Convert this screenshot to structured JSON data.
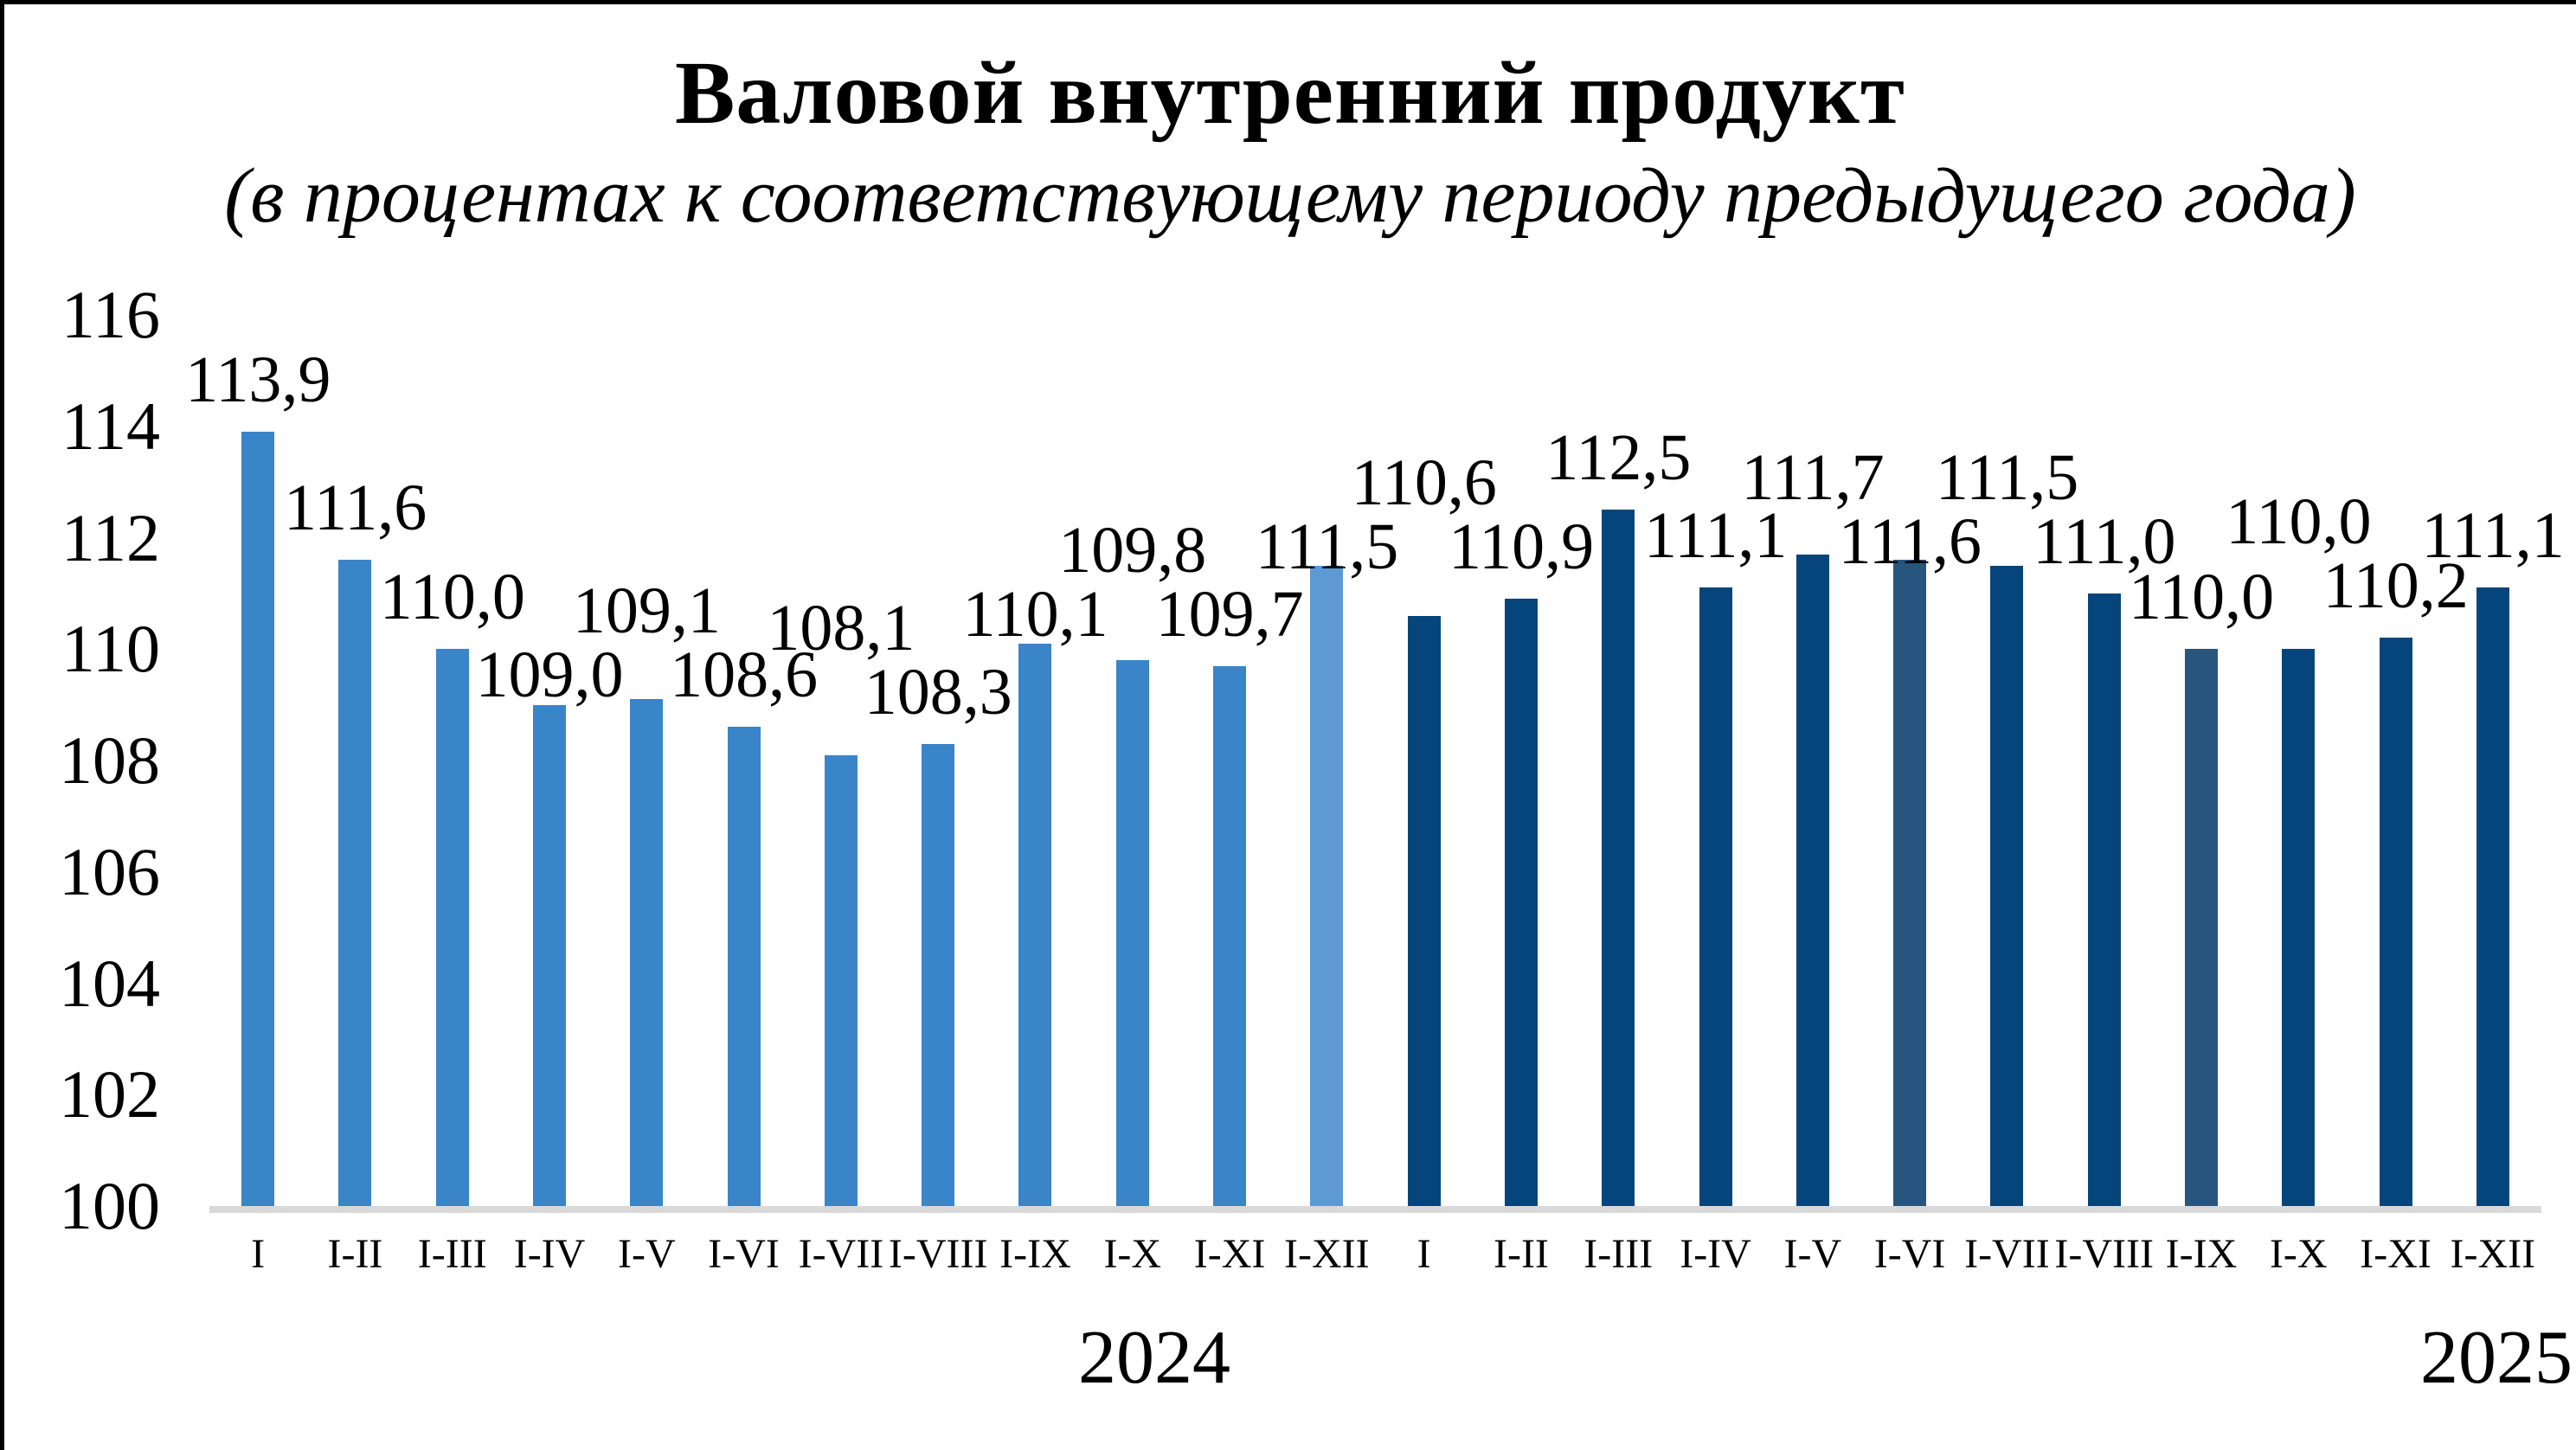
{
  "chart_data": {
    "type": "bar",
    "title": "Валовой внутренний продукт",
    "subtitle": "(в процентах к соответствующему периоду предыдущего года)",
    "ylim": [
      100,
      116
    ],
    "yticks": [
      116,
      114,
      112,
      110,
      108,
      106,
      104,
      102,
      100
    ],
    "grid": "off",
    "legend": "none",
    "decimal_separator": ",",
    "palette": {
      "bar_2024": "#3a84c8",
      "bar_2024_fullyear": "#5d9ad3",
      "bar_2025": "#06457b",
      "bar_2025_muted": "#27557e",
      "axis_line": "#d9d9d9",
      "text": "#000000"
    },
    "groups": [
      {
        "year": "2024",
        "categories": [
          "I",
          "I-II",
          "I-III",
          "I-IV",
          "I-V",
          "I-VI",
          "I-VII",
          "I-VIII",
          "I-IX",
          "I-X",
          "I-XI",
          "I-XII"
        ],
        "values": [
          113.9,
          111.6,
          110.0,
          109.0,
          109.1,
          108.6,
          108.1,
          108.3,
          110.1,
          109.8,
          109.7,
          111.5
        ],
        "labels": [
          "113,9",
          "111,6",
          "110,0",
          "109,0",
          "109,1",
          "108,6",
          "108,1",
          "108,3",
          "110,1",
          "109,8",
          "109,7",
          "111,5"
        ],
        "bar_colors": [
          "bar_2024",
          "bar_2024",
          "bar_2024",
          "bar_2024",
          "bar_2024",
          "bar_2024",
          "bar_2024",
          "bar_2024",
          "bar_2024",
          "bar_2024",
          "bar_2024",
          "bar_2024_fullyear"
        ]
      },
      {
        "year": "2025",
        "categories": [
          "I",
          "I-II",
          "I-III",
          "I-IV",
          "I-V",
          "I-VI",
          "I-VII",
          "I-VIII",
          "I-IX",
          "I-X",
          "I-XI",
          "I-XII"
        ],
        "values": [
          110.6,
          110.9,
          112.5,
          111.1,
          111.7,
          111.6,
          111.5,
          111.0,
          110.0,
          110.0,
          110.2,
          111.1
        ],
        "labels": [
          "110,6",
          "110,9",
          "112,5",
          "111,1",
          "111,7",
          "111,6",
          "111,5",
          "111,0",
          "110,0",
          "110,0",
          "110,2",
          "111,1"
        ],
        "bar_colors": [
          "bar_2025",
          "bar_2025",
          "bar_2025",
          "bar_2025",
          "bar_2025",
          "bar_2025_muted",
          "bar_2025",
          "bar_2025",
          "bar_2025_muted",
          "bar_2025",
          "bar_2025",
          "bar_2025"
        ]
      }
    ]
  }
}
